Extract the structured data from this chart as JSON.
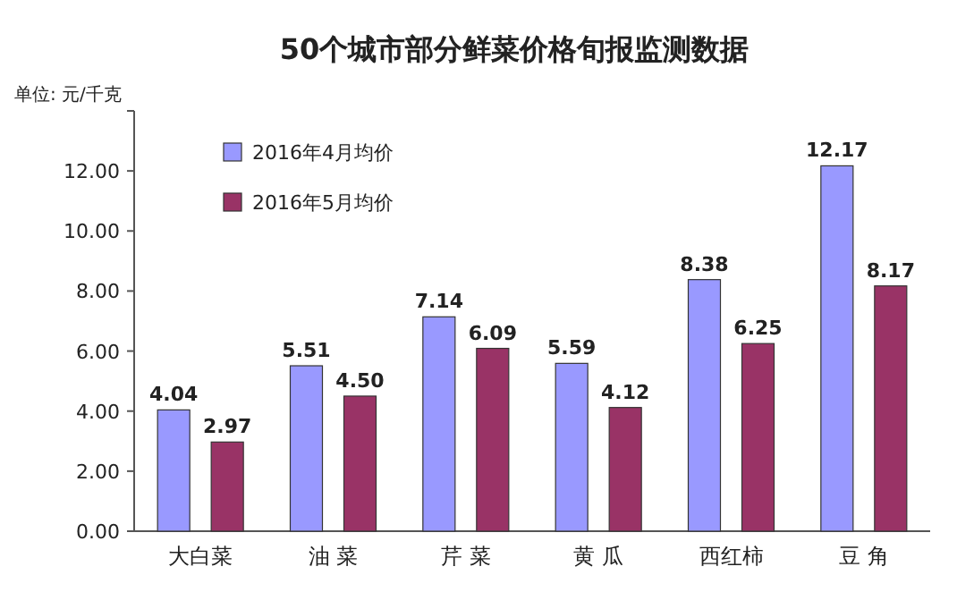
{
  "chart_data": {
    "type": "bar",
    "title": "50个城市部分鲜菜价格旬报监测数据",
    "annotations": [
      "单位: 元/千克"
    ],
    "categories": [
      "大白菜",
      "油  菜",
      "芹  菜",
      "黄  瓜",
      "西红柿",
      "豆  角"
    ],
    "series": [
      {
        "name": "2016年4月均价",
        "color": "#9999ff",
        "values": [
          4.04,
          5.51,
          7.14,
          5.59,
          8.38,
          12.17
        ],
        "value_labels": [
          "4.04",
          "5.51",
          "7.14",
          "5.59",
          "8.38",
          "12.17"
        ]
      },
      {
        "name": "2016年5月均价",
        "color": "#993366",
        "values": [
          2.97,
          4.5,
          6.09,
          4.12,
          6.25,
          8.17
        ],
        "value_labels": [
          "2.97",
          "4.50",
          "6.09",
          "4.12",
          "6.25",
          "8.17"
        ]
      }
    ],
    "ylim": [
      0,
      14
    ],
    "yticks": [
      {
        "value": 0,
        "label": "0.00"
      },
      {
        "value": 2,
        "label": "2.00"
      },
      {
        "value": 4,
        "label": "4.00"
      },
      {
        "value": 6,
        "label": "6.00"
      },
      {
        "value": 8,
        "label": "8.00"
      },
      {
        "value": 10,
        "label": "10.00"
      },
      {
        "value": 12,
        "label": "12.00"
      },
      {
        "value": 14,
        "label": null
      }
    ],
    "legend": "top left",
    "grid": false
  }
}
